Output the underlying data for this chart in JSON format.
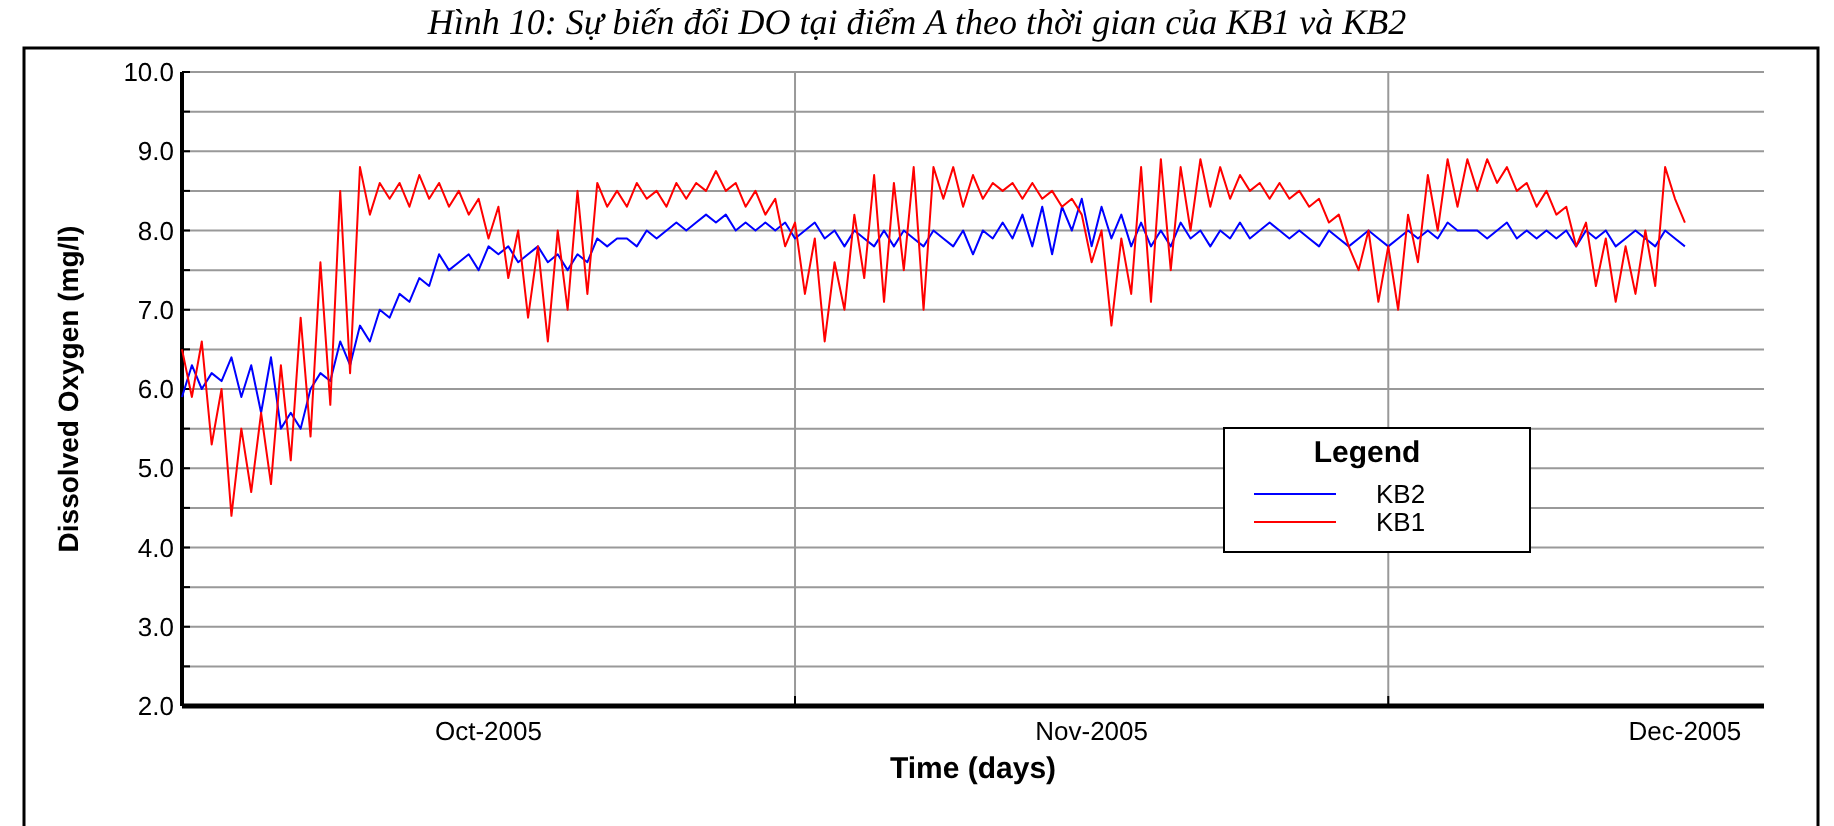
{
  "chart_data": {
    "type": "line",
    "title": "Hình 10: Sự biến đổi DO tại điểm A theo thời gian của KB1 và KB2",
    "xlabel": "Time (days)",
    "ylabel": "Dissolved Oxygen (mg/l)",
    "legend_title": "Legend",
    "legend": "bottom right",
    "grid": true,
    "line_style": "solid",
    "marker": "none",
    "xlim": [
      "2005-10-01",
      "2005-12-20"
    ],
    "xticks": [
      {
        "value": "2005-10-16T12:00",
        "label": "Oct-2005"
      },
      {
        "value": "2005-11-01",
        "label": null
      },
      {
        "value": "2005-11-16",
        "label": "Nov-2005"
      },
      {
        "value": "2005-12-01",
        "label": null
      },
      {
        "value": "2005-12-16",
        "label": "Dec-2005"
      }
    ],
    "ylim": [
      2,
      10
    ],
    "yticks": [
      {
        "value": 2,
        "label": "2.0"
      },
      {
        "value": 2.5,
        "label": null
      },
      {
        "value": 3,
        "label": "3.0"
      },
      {
        "value": 3.5,
        "label": null
      },
      {
        "value": 4,
        "label": "4.0"
      },
      {
        "value": 4.5,
        "label": null
      },
      {
        "value": 5,
        "label": "5.0"
      },
      {
        "value": 5.5,
        "label": null
      },
      {
        "value": 6,
        "label": "6.0"
      },
      {
        "value": 6.5,
        "label": null
      },
      {
        "value": 7,
        "label": "7.0"
      },
      {
        "value": 7.5,
        "label": null
      },
      {
        "value": 8,
        "label": "8.0"
      },
      {
        "value": 8.5,
        "label": null
      },
      {
        "value": 9,
        "label": "9.0"
      },
      {
        "value": 9.5,
        "label": null
      },
      {
        "value": 10,
        "label": "10.0"
      }
    ],
    "x": [
      "2005-10-01",
      "2005-10-01T12:00",
      "2005-10-02",
      "2005-10-02T12:00",
      "2005-10-03",
      "2005-10-03T12:00",
      "2005-10-04",
      "2005-10-04T12:00",
      "2005-10-05",
      "2005-10-05T12:00",
      "2005-10-06",
      "2005-10-06T12:00",
      "2005-10-07",
      "2005-10-07T12:00",
      "2005-10-08",
      "2005-10-08T12:00",
      "2005-10-09",
      "2005-10-09T12:00",
      "2005-10-10",
      "2005-10-10T12:00",
      "2005-10-11",
      "2005-10-11T12:00",
      "2005-10-12",
      "2005-10-12T12:00",
      "2005-10-13",
      "2005-10-13T12:00",
      "2005-10-14",
      "2005-10-14T12:00",
      "2005-10-15",
      "2005-10-15T12:00",
      "2005-10-16",
      "2005-10-16T12:00",
      "2005-10-17",
      "2005-10-17T12:00",
      "2005-10-18",
      "2005-10-18T12:00",
      "2005-10-19",
      "2005-10-19T12:00",
      "2005-10-20",
      "2005-10-20T12:00",
      "2005-10-21",
      "2005-10-21T12:00",
      "2005-10-22",
      "2005-10-22T12:00",
      "2005-10-23",
      "2005-10-23T12:00",
      "2005-10-24",
      "2005-10-24T12:00",
      "2005-10-25",
      "2005-10-25T12:00",
      "2005-10-26",
      "2005-10-26T12:00",
      "2005-10-27",
      "2005-10-27T12:00",
      "2005-10-28",
      "2005-10-28T12:00",
      "2005-10-29",
      "2005-10-29T12:00",
      "2005-10-30",
      "2005-10-30T12:00",
      "2005-10-31",
      "2005-10-31T12:00",
      "2005-11-01",
      "2005-11-01T12:00",
      "2005-11-02",
      "2005-11-02T12:00",
      "2005-11-03",
      "2005-11-03T12:00",
      "2005-11-04",
      "2005-11-04T12:00",
      "2005-11-05",
      "2005-11-05T12:00",
      "2005-11-06",
      "2005-11-06T12:00",
      "2005-11-07",
      "2005-11-07T12:00",
      "2005-11-08",
      "2005-11-08T12:00",
      "2005-11-09",
      "2005-11-09T12:00",
      "2005-11-10",
      "2005-11-10T12:00",
      "2005-11-11",
      "2005-11-11T12:00",
      "2005-11-12",
      "2005-11-12T12:00",
      "2005-11-13",
      "2005-11-13T12:00",
      "2005-11-14",
      "2005-11-14T12:00",
      "2005-11-15",
      "2005-11-15T12:00",
      "2005-11-16",
      "2005-11-16T12:00",
      "2005-11-17",
      "2005-11-17T12:00",
      "2005-11-18",
      "2005-11-18T12:00",
      "2005-11-19",
      "2005-11-19T12:00",
      "2005-11-20",
      "2005-11-20T12:00",
      "2005-11-21",
      "2005-11-21T12:00",
      "2005-11-22",
      "2005-11-22T12:00",
      "2005-11-23",
      "2005-11-23T12:00",
      "2005-11-24",
      "2005-11-24T12:00",
      "2005-11-25",
      "2005-11-25T12:00",
      "2005-11-26",
      "2005-11-26T12:00",
      "2005-11-27",
      "2005-11-27T12:00",
      "2005-11-28",
      "2005-11-28T12:00",
      "2005-11-29",
      "2005-11-29T12:00",
      "2005-11-30",
      "2005-11-30T12:00",
      "2005-12-01",
      "2005-12-01T12:00",
      "2005-12-02",
      "2005-12-02T12:00",
      "2005-12-03",
      "2005-12-03T12:00",
      "2005-12-04",
      "2005-12-04T12:00",
      "2005-12-05",
      "2005-12-05T12:00",
      "2005-12-06",
      "2005-12-06T12:00",
      "2005-12-07",
      "2005-12-07T12:00",
      "2005-12-08",
      "2005-12-08T12:00",
      "2005-12-09",
      "2005-12-09T12:00",
      "2005-12-10",
      "2005-12-10T12:00",
      "2005-12-11",
      "2005-12-11T12:00",
      "2005-12-12",
      "2005-12-12T12:00",
      "2005-12-13",
      "2005-12-13T12:00",
      "2005-12-14",
      "2005-12-14T12:00",
      "2005-12-15",
      "2005-12-15T12:00",
      "2005-12-16"
    ],
    "series": [
      {
        "name": "KB2",
        "color": "#0000ff",
        "values": [
          5.9,
          6.3,
          6.0,
          6.2,
          6.1,
          6.4,
          5.9,
          6.3,
          5.7,
          6.4,
          5.5,
          5.7,
          5.5,
          6.0,
          6.2,
          6.1,
          6.6,
          6.3,
          6.8,
          6.6,
          7.0,
          6.9,
          7.2,
          7.1,
          7.4,
          7.3,
          7.7,
          7.5,
          7.6,
          7.7,
          7.5,
          7.8,
          7.7,
          7.8,
          7.6,
          7.7,
          7.8,
          7.6,
          7.7,
          7.5,
          7.7,
          7.6,
          7.9,
          7.8,
          7.9,
          7.9,
          7.8,
          8.0,
          7.9,
          8.0,
          8.1,
          8.0,
          8.1,
          8.2,
          8.1,
          8.2,
          8.0,
          8.1,
          8.0,
          8.1,
          8.0,
          8.1,
          7.9,
          8.0,
          8.1,
          7.9,
          8.0,
          7.8,
          8.0,
          7.9,
          7.8,
          8.0,
          7.8,
          8.0,
          7.9,
          7.8,
          8.0,
          7.9,
          7.8,
          8.0,
          7.7,
          8.0,
          7.9,
          8.1,
          7.9,
          8.2,
          7.8,
          8.3,
          7.7,
          8.3,
          8.0,
          8.4,
          7.8,
          8.3,
          7.9,
          8.2,
          7.8,
          8.1,
          7.8,
          8.0,
          7.8,
          8.1,
          7.9,
          8.0,
          7.8,
          8.0,
          7.9,
          8.1,
          7.9,
          8.0,
          8.1,
          8.0,
          7.9,
          8.0,
          7.9,
          7.8,
          8.0,
          7.9,
          7.8,
          7.9,
          8.0,
          7.9,
          7.8,
          7.9,
          8.0,
          7.9,
          8.0,
          7.9,
          8.1,
          8.0,
          8.0,
          8.0,
          7.9,
          8.0,
          8.1,
          7.9,
          8.0,
          7.9,
          8.0,
          7.9,
          8.0,
          7.8,
          8.0,
          7.9,
          8.0,
          7.8,
          7.9,
          8.0,
          7.9,
          7.8,
          8.0,
          7.9,
          7.8
        ]
      },
      {
        "name": "KB1",
        "color": "#ff0000",
        "values": [
          6.5,
          5.9,
          6.6,
          5.3,
          6.0,
          4.4,
          5.5,
          4.7,
          5.7,
          4.8,
          6.3,
          5.1,
          6.9,
          5.4,
          7.6,
          5.8,
          8.5,
          6.2,
          8.8,
          8.2,
          8.6,
          8.4,
          8.6,
          8.3,
          8.7,
          8.4,
          8.6,
          8.3,
          8.5,
          8.2,
          8.4,
          7.9,
          8.3,
          7.4,
          8.0,
          6.9,
          7.8,
          6.6,
          8.0,
          7.0,
          8.5,
          7.2,
          8.6,
          8.3,
          8.5,
          8.3,
          8.6,
          8.4,
          8.5,
          8.3,
          8.6,
          8.4,
          8.6,
          8.5,
          8.75,
          8.5,
          8.6,
          8.3,
          8.5,
          8.2,
          8.4,
          7.8,
          8.1,
          7.2,
          7.9,
          6.6,
          7.6,
          7.0,
          8.2,
          7.4,
          8.7,
          7.1,
          8.6,
          7.5,
          8.8,
          7.0,
          8.8,
          8.4,
          8.8,
          8.3,
          8.7,
          8.4,
          8.6,
          8.5,
          8.6,
          8.4,
          8.6,
          8.4,
          8.5,
          8.3,
          8.4,
          8.2,
          7.6,
          8.0,
          6.8,
          7.9,
          7.2,
          8.8,
          7.1,
          8.9,
          7.5,
          8.8,
          8.0,
          8.9,
          8.3,
          8.8,
          8.4,
          8.7,
          8.5,
          8.6,
          8.4,
          8.6,
          8.4,
          8.5,
          8.3,
          8.4,
          8.1,
          8.2,
          7.8,
          7.5,
          8.0,
          7.1,
          7.8,
          7.0,
          8.2,
          7.6,
          8.7,
          8.0,
          8.9,
          8.3,
          8.9,
          8.5,
          8.9,
          8.6,
          8.8,
          8.5,
          8.6,
          8.3,
          8.5,
          8.2,
          8.3,
          7.8,
          8.1,
          7.3,
          7.9,
          7.1,
          7.8,
          7.2,
          8.0,
          7.3,
          8.8,
          8.4,
          8.1
        ]
      }
    ]
  }
}
